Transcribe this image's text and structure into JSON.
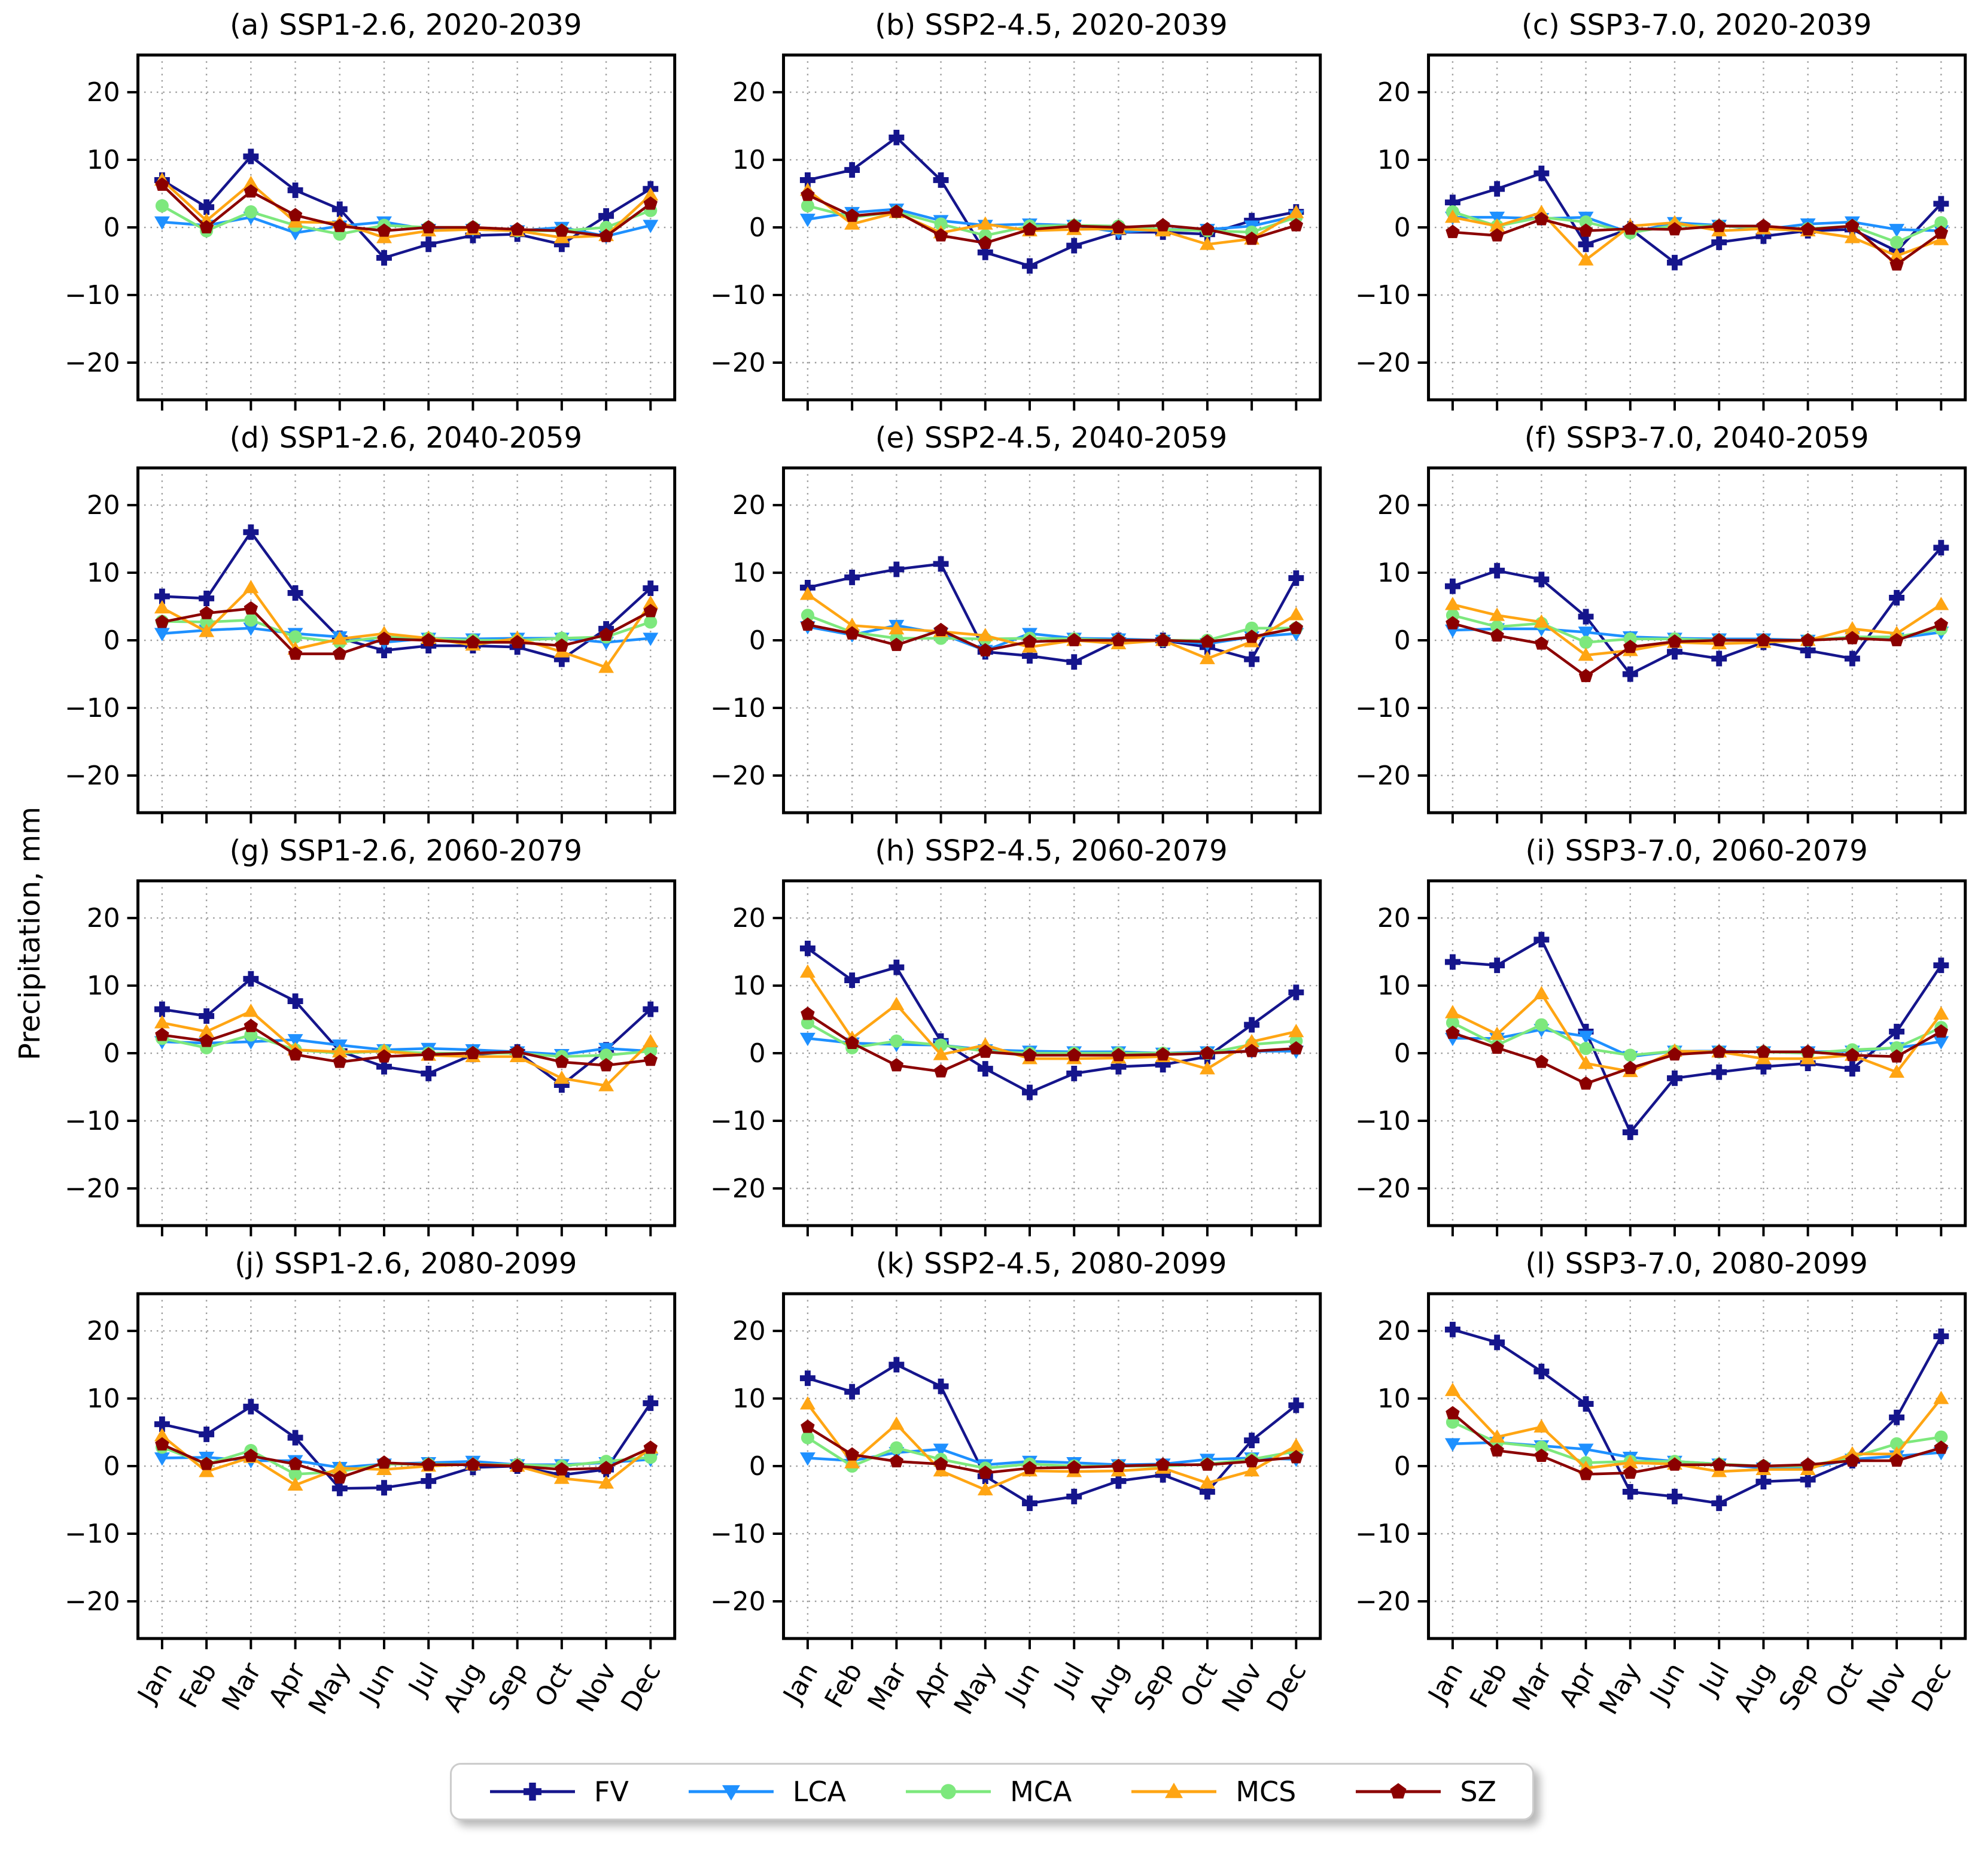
{
  "chart_data": {
    "type": "line",
    "ylabel": "Precipitation, mm",
    "xlabel": "",
    "categories": [
      "Jan",
      "Feb",
      "Mar",
      "Apr",
      "May",
      "Jun",
      "Jul",
      "Aug",
      "Sep",
      "Oct",
      "Nov",
      "Dec"
    ],
    "yticks": [
      20,
      10,
      0,
      -10,
      -20
    ],
    "ylim": [
      -25.5,
      25.5
    ],
    "grid": true,
    "gridline_style": "dotted",
    "legend_position": "bottom",
    "series_meta": [
      {
        "name": "FV",
        "color": "#15158c",
        "marker": "plus"
      },
      {
        "name": "LCA",
        "color": "#1e90ff",
        "marker": "triangle-down"
      },
      {
        "name": "MCA",
        "color": "#7de87d",
        "marker": "circle"
      },
      {
        "name": "MCS",
        "color": "#ffa513",
        "marker": "triangle-up"
      },
      {
        "name": "SZ",
        "color": "#8b0000",
        "marker": "pentagon"
      }
    ],
    "panels": [
      {
        "id": "a",
        "title": "(a) SSP1-2.6, 2020-2039",
        "series": {
          "FV": [
            7,
            3,
            10.5,
            5.5,
            2.7,
            -4.5,
            -2.5,
            -1.2,
            -1,
            -2.5,
            1.7,
            5.7
          ],
          "LCA": [
            0.8,
            0.3,
            1.5,
            -0.8,
            0.2,
            0.8,
            -0.3,
            -0.3,
            -0.5,
            0,
            -1.3,
            0.3
          ],
          "MCA": [
            3.2,
            -0.5,
            2.3,
            0.3,
            -1,
            0.3,
            0,
            0,
            -0.5,
            -0.5,
            0,
            2.5
          ],
          "MCS": [
            7,
            1,
            6.5,
            0.8,
            0.7,
            -1.5,
            -0.5,
            -0.3,
            -0.5,
            -1.5,
            -1.2,
            4.8
          ],
          "SZ": [
            6.3,
            0,
            5.3,
            1.8,
            0.2,
            -0.5,
            0,
            0,
            -0.3,
            -0.5,
            -1.3,
            3.5
          ]
        }
      },
      {
        "id": "b",
        "title": "(b) SSP2-4.5, 2020-2039",
        "series": {
          "FV": [
            7,
            8.5,
            13.3,
            7,
            -3.7,
            -5.7,
            -2.7,
            -0.7,
            -0.7,
            -1,
            1,
            2.3
          ],
          "LCA": [
            1.2,
            2.2,
            2.7,
            1,
            0.3,
            0.5,
            0.3,
            -0.7,
            -0.3,
            -0.3,
            0.2,
            1.7
          ],
          "MCA": [
            3.2,
            1.5,
            2.3,
            0.5,
            -1.2,
            0.2,
            0.3,
            0.2,
            -0.3,
            -0.5,
            -0.7,
            1.5
          ],
          "MCS": [
            5.5,
            0.5,
            2.2,
            -0.8,
            0.5,
            -0.5,
            -0.3,
            -0.2,
            -0.5,
            -2.5,
            -1.7,
            2.2
          ],
          "SZ": [
            4.8,
            1.7,
            2.3,
            -1.2,
            -2.3,
            -0.3,
            0.2,
            0,
            0.3,
            -0.3,
            -1.7,
            0.3
          ]
        }
      },
      {
        "id": "c",
        "title": "(c) SSP3-7.0, 2020-2039",
        "series": {
          "FV": [
            3.7,
            5.7,
            8,
            -2.5,
            -0.2,
            -5.2,
            -2.2,
            -1.3,
            -0.5,
            -0.3,
            -3.5,
            3.5
          ],
          "LCA": [
            1.5,
            1.5,
            1.3,
            1.5,
            -0.8,
            0.7,
            0.3,
            -0.3,
            0.5,
            0.8,
            -0.3,
            -0.5
          ],
          "MCA": [
            2.3,
            0.2,
            1.5,
            0.8,
            -0.8,
            0.3,
            0.2,
            0,
            -0.2,
            0.2,
            -2.2,
            0.7
          ],
          "MCS": [
            1.5,
            0.2,
            2.2,
            -4.8,
            0.2,
            0.7,
            -0.5,
            -0.2,
            -0.5,
            -1.5,
            -4.2,
            -1.8
          ],
          "SZ": [
            -0.7,
            -1.2,
            1.2,
            -0.5,
            -0.2,
            -0.3,
            0.2,
            0.2,
            -0.3,
            0.2,
            -5.5,
            -0.8
          ]
        }
      },
      {
        "id": "d",
        "title": "(d) SSP1-2.6, 2040-2059",
        "series": {
          "FV": [
            6.5,
            6.2,
            16,
            7,
            0.3,
            -1.5,
            -0.8,
            -0.8,
            -1,
            -2.8,
            1.7,
            7.7
          ],
          "LCA": [
            1,
            1.5,
            1.8,
            1,
            0.5,
            -0.3,
            0.3,
            0.2,
            0.3,
            0.3,
            -0.3,
            0.3
          ],
          "MCA": [
            2.8,
            2.7,
            3,
            0.5,
            -0.3,
            0.5,
            0.3,
            0,
            0,
            0.3,
            0.5,
            2.7
          ],
          "MCS": [
            4.8,
            1.3,
            7.8,
            -1.3,
            0.2,
            1,
            0.3,
            -0.7,
            0.3,
            -1.7,
            -4,
            5.5
          ],
          "SZ": [
            2.7,
            4,
            4.7,
            -2,
            -2,
            0.2,
            0,
            -0.3,
            -0.3,
            -0.8,
            0.8,
            4.3
          ]
        }
      },
      {
        "id": "e",
        "title": "(e) SSP2-4.5, 2040-2059",
        "series": {
          "FV": [
            7.8,
            9.3,
            10.5,
            11.3,
            -1.7,
            -2.3,
            -3.2,
            0,
            0,
            -1,
            -2.8,
            9.2
          ],
          "LCA": [
            2,
            0.8,
            2.2,
            1,
            -1.5,
            1,
            0.3,
            0.2,
            0,
            -0.5,
            0.5,
            1
          ],
          "MCA": [
            3.7,
            1.2,
            0.3,
            0.3,
            0.2,
            0.3,
            0.2,
            0,
            0,
            0,
            1.8,
            1.8
          ],
          "MCS": [
            6.8,
            2.2,
            1.7,
            1.3,
            0.7,
            -1,
            0,
            -0.5,
            0,
            -2.7,
            -0.2,
            3.8
          ],
          "SZ": [
            2.3,
            1,
            -0.7,
            1.5,
            -1.5,
            -0.2,
            0,
            0,
            0,
            -0.2,
            0.5,
            1.8
          ]
        }
      },
      {
        "id": "f",
        "title": "(f) SSP3-7.0, 2040-2059",
        "series": {
          "FV": [
            8,
            10.3,
            9,
            3.5,
            -5,
            -1.7,
            -2.7,
            -0.3,
            -1.5,
            -2.7,
            6.3,
            13.7
          ],
          "LCA": [
            1.5,
            1.7,
            1.7,
            1.2,
            0.5,
            0.3,
            0.2,
            0.2,
            0,
            0.5,
            0.3,
            1.2
          ],
          "MCA": [
            3.7,
            2,
            2.5,
            -0.3,
            0.2,
            0.2,
            0,
            0,
            0,
            0.5,
            0.5,
            1.7
          ],
          "MCS": [
            5.3,
            3.7,
            2.7,
            -2.2,
            -1.5,
            -0.3,
            -0.5,
            -0.3,
            0,
            1.7,
            1,
            5.3
          ],
          "SZ": [
            2.5,
            0.7,
            -0.5,
            -5.3,
            -1,
            -0.2,
            0,
            0,
            0,
            0.3,
            0,
            2.3
          ]
        }
      },
      {
        "id": "g",
        "title": "(g) SSP1-2.6, 2060-2079",
        "series": {
          "FV": [
            6.5,
            5.5,
            11,
            7.7,
            0.3,
            -2,
            -3,
            -0.2,
            0.2,
            -4.7,
            0.5,
            6.5
          ],
          "LCA": [
            1.7,
            1.5,
            1.7,
            2,
            1.2,
            0.5,
            0.7,
            0.5,
            0.2,
            -0.2,
            0.7,
            0.3
          ],
          "MCA": [
            2.2,
            0.8,
            2.7,
            0.5,
            0,
            0.3,
            0,
            0,
            0,
            -0.5,
            -0.3,
            0.3
          ],
          "MCS": [
            4.5,
            3.2,
            6.2,
            0.5,
            0.2,
            0.3,
            -0.3,
            -0.5,
            -0.5,
            -3.7,
            -4.8,
            1.7
          ],
          "SZ": [
            2.7,
            1.8,
            4,
            -0.2,
            -1.3,
            -0.5,
            -0.2,
            0,
            0.2,
            -1.3,
            -1.8,
            -1
          ]
        }
      },
      {
        "id": "h",
        "title": "(h) SSP2-4.5, 2060-2079",
        "series": {
          "FV": [
            15.5,
            10.8,
            12.7,
            1.8,
            -2.3,
            -5.8,
            -3,
            -2,
            -1.7,
            -0.5,
            4.2,
            9
          ],
          "LCA": [
            2.2,
            1.5,
            1.3,
            1.2,
            0.5,
            0.3,
            0.2,
            0.2,
            0,
            0.2,
            0.3,
            0.3
          ],
          "MCA": [
            4.5,
            0.8,
            1.8,
            1.2,
            0.3,
            0,
            0,
            0,
            0,
            0,
            1.3,
            1.8
          ],
          "MCS": [
            12,
            2.2,
            7.2,
            -0.2,
            1.2,
            -0.8,
            -0.8,
            -0.7,
            -0.5,
            -2.3,
            1.7,
            3.2
          ],
          "SZ": [
            5.8,
            1.5,
            -1.8,
            -2.7,
            0.2,
            -0.3,
            -0.3,
            -0.3,
            -0.2,
            0,
            0.3,
            0.7
          ]
        }
      },
      {
        "id": "i",
        "title": "(i) SSP3-7.0, 2060-2079",
        "series": {
          "FV": [
            13.5,
            13,
            16.8,
            3.2,
            -11.7,
            -3.7,
            -2.8,
            -2,
            -1.5,
            -2.3,
            3.2,
            13
          ],
          "LCA": [
            2.2,
            2.2,
            3.5,
            2.5,
            -0.5,
            0.3,
            0.3,
            0.2,
            0.2,
            0.3,
            0.8,
            1.7
          ],
          "MCA": [
            4.5,
            1.2,
            4.2,
            0.7,
            -0.3,
            0.3,
            0.2,
            0.2,
            0,
            0.5,
            0.8,
            3.8
          ],
          "MCS": [
            6,
            2.8,
            8.8,
            -1.5,
            -2.7,
            0.3,
            0.2,
            -0.8,
            -0.8,
            -0.3,
            -2.8,
            5.8
          ],
          "SZ": [
            3,
            0.8,
            -1.3,
            -4.5,
            -2.2,
            -0.2,
            0.2,
            0.2,
            0.2,
            -0.3,
            -0.5,
            3.2
          ]
        }
      },
      {
        "id": "j",
        "title": "(j) SSP1-2.6, 2080-2099",
        "series": {
          "FV": [
            6.2,
            4.7,
            8.8,
            4.2,
            -3.3,
            -3.2,
            -2.2,
            -0.2,
            0,
            -1.3,
            -0.5,
            9.3
          ],
          "LCA": [
            1.2,
            1.3,
            0.8,
            0.8,
            -0.2,
            0.3,
            0.5,
            0.7,
            0.2,
            0.2,
            0.5,
            1
          ],
          "MCA": [
            2.8,
            0.3,
            2.3,
            -1.2,
            -0.8,
            0.3,
            0.3,
            0.2,
            0.2,
            0,
            0.7,
            1.3
          ],
          "MCS": [
            4.5,
            -0.8,
            1.3,
            -2.8,
            -0.3,
            -0.5,
            0,
            0.3,
            0,
            -1.8,
            -2.5,
            2.7
          ],
          "SZ": [
            3.2,
            0.3,
            1.5,
            0.3,
            -1.7,
            0.5,
            0.2,
            0.2,
            0,
            -0.5,
            -0.3,
            2.7
          ]
        }
      },
      {
        "id": "k",
        "title": "(k) SSP2-4.5, 2080-2099",
        "series": {
          "FV": [
            13,
            11,
            15,
            11.8,
            -1.5,
            -5.5,
            -4.5,
            -2.2,
            -1.3,
            -3.8,
            3.8,
            9
          ],
          "LCA": [
            1.2,
            0.8,
            2,
            2.5,
            0.2,
            0.7,
            0.5,
            0.2,
            0.3,
            1,
            1.2,
            1
          ],
          "MCA": [
            4.2,
            0,
            2.7,
            1,
            -0.3,
            0.3,
            0,
            0,
            0,
            0.3,
            1,
            2.2
          ],
          "MCS": [
            9.2,
            0.5,
            6.2,
            -0.7,
            -3.5,
            -0.7,
            -0.8,
            -0.7,
            -0.3,
            -2.5,
            -0.7,
            3
          ],
          "SZ": [
            5.8,
            1.7,
            0.7,
            0.3,
            -1,
            -0.3,
            -0.2,
            0,
            0.2,
            0.2,
            0.7,
            1.3
          ]
        }
      },
      {
        "id": "l",
        "title": "(l) SSP3-7.0, 2080-2099",
        "series": {
          "FV": [
            20.2,
            18.3,
            14,
            9.2,
            -3.8,
            -4.5,
            -5.5,
            -2.3,
            -2,
            0.8,
            7.2,
            19.2
          ],
          "LCA": [
            3.3,
            3.5,
            3,
            2.5,
            1.3,
            0.7,
            0.3,
            -0.3,
            -0.3,
            1,
            1.5,
            2
          ],
          "MCA": [
            6.5,
            3.5,
            2.8,
            0.5,
            0.7,
            0.7,
            0.3,
            0,
            0,
            1.3,
            3.3,
            4.3
          ],
          "MCS": [
            11.2,
            4.3,
            5.8,
            -0.3,
            0.5,
            0.3,
            -0.8,
            -0.5,
            -0.5,
            1.8,
            1.8,
            10
          ],
          "SZ": [
            7.8,
            2.3,
            1.5,
            -1.2,
            -1,
            0.2,
            0.2,
            0,
            0.2,
            0.8,
            0.8,
            2.7
          ]
        }
      }
    ]
  }
}
